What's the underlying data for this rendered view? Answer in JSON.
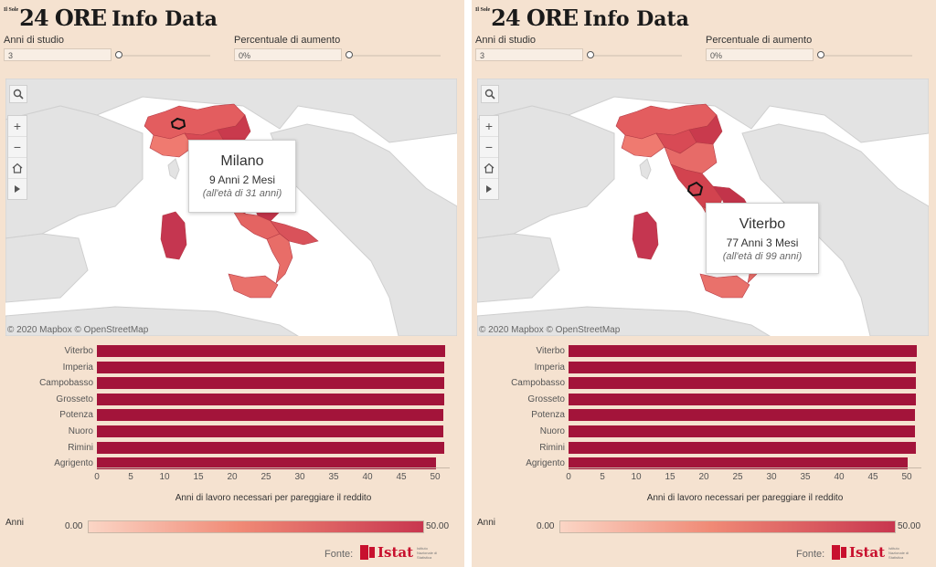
{
  "header": {
    "small": "Il Sole",
    "big": "24 ORE",
    "info": "Info Data"
  },
  "controls": {
    "anni_label": "Anni di studio",
    "anni_value": "3",
    "perc_label": "Percentuale di aumento",
    "perc_value": "0%"
  },
  "map": {
    "attribution": "© 2020 Mapbox © OpenStreetMap"
  },
  "panels": [
    {
      "tooltip": {
        "city": "Milano",
        "years": "9 Anni 2 Mesi",
        "age": "(all'età di 31 anni)"
      }
    },
    {
      "tooltip": {
        "city": "Viterbo",
        "years": "77 Anni 3 Mesi",
        "age": "(all'età di 99 anni)"
      }
    }
  ],
  "chart_data": {
    "type": "bar",
    "orientation": "horizontal",
    "categories": [
      "Viterbo",
      "Imperia",
      "Campobasso",
      "Grosseto",
      "Potenza",
      "Nuoro",
      "Rimini",
      "Agrigento"
    ],
    "values": [
      51.5,
      51.3,
      51.3,
      51.3,
      51.2,
      51.2,
      51.4,
      50.1
    ],
    "xlabel": "Anni di lavoro necessari per pareggiare il reddito",
    "xlim": [
      0,
      52
    ],
    "xticks": [
      "0",
      "5",
      "10",
      "15",
      "20",
      "25",
      "30",
      "35",
      "40",
      "45",
      "50"
    ],
    "bar_color": "#a3143a"
  },
  "legend": {
    "title": "Anni",
    "min": "0.00",
    "max": "50.00",
    "color_low": "#fbd5c5",
    "color_high": "#c8364f"
  },
  "source": {
    "label": "Fonte:",
    "org": "Istat",
    "org_sub": "Istituto Nazionale di Statistica"
  }
}
